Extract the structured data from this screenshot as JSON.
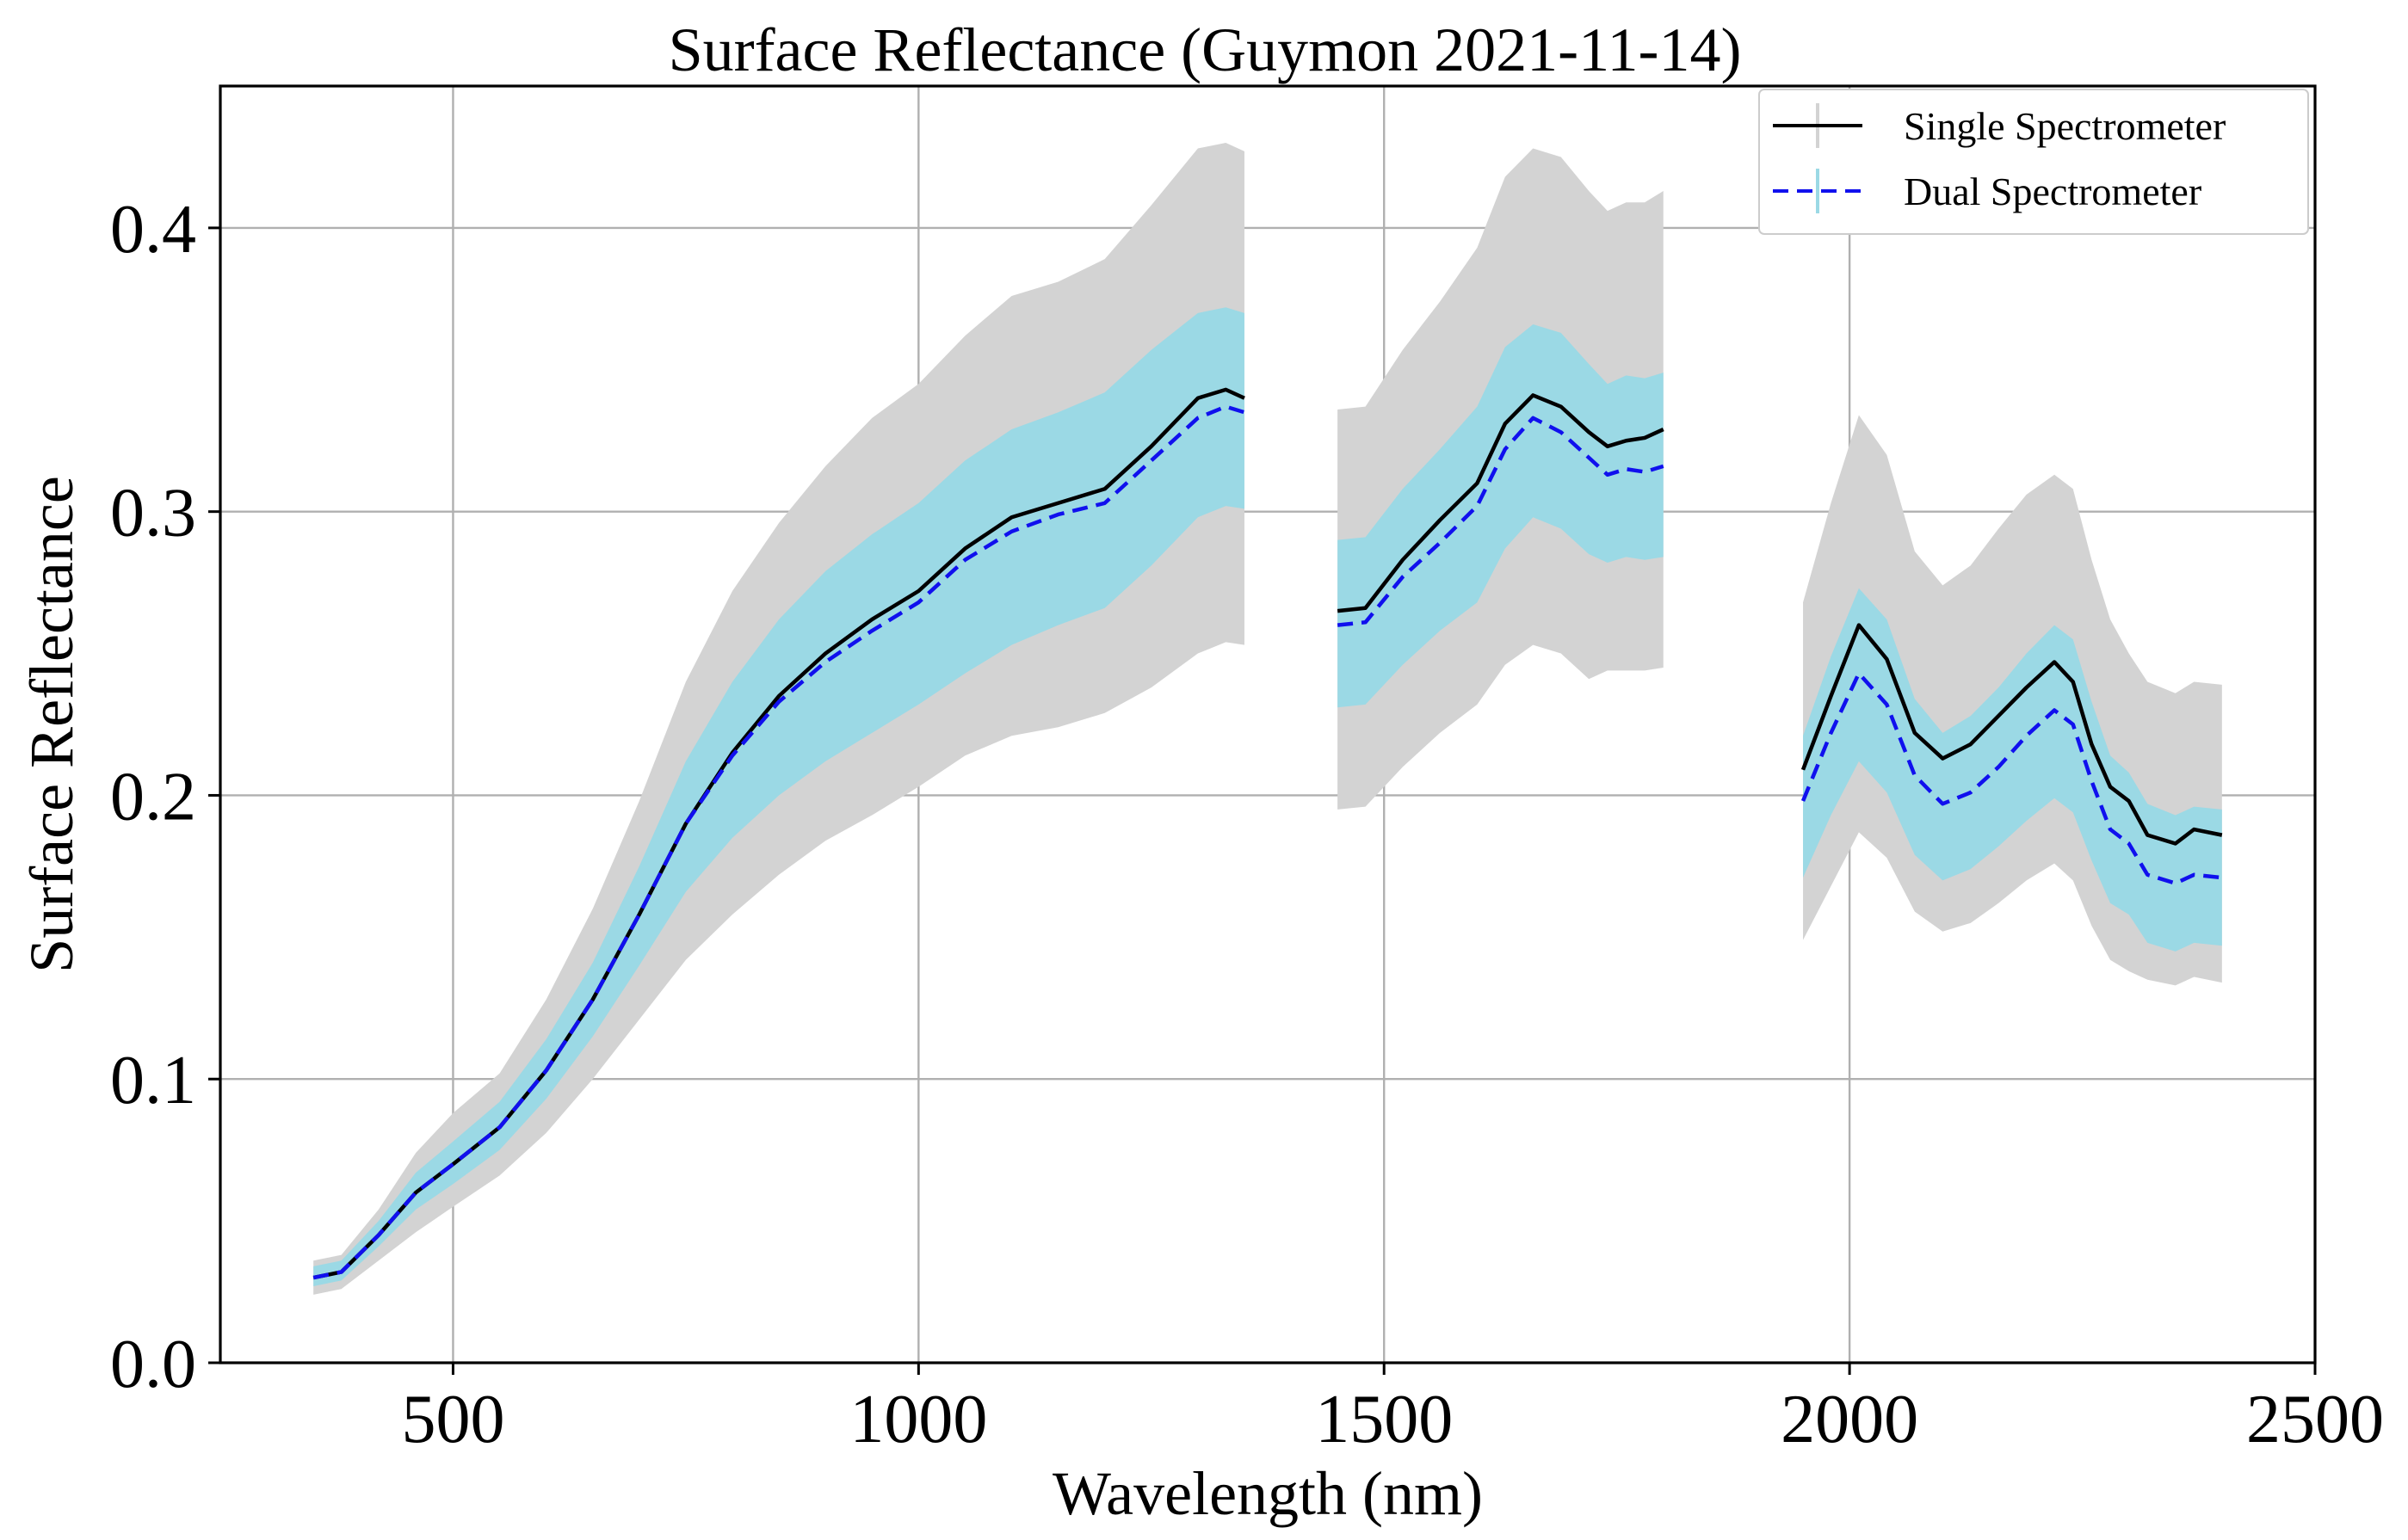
{
  "chart_data": {
    "type": "line",
    "title": "Surface Reflectance (Guymon 2021-11-14)",
    "xlabel": "Wavelength (nm)",
    "ylabel": "Surface Reflectance",
    "xlim": [
      250,
      2500
    ],
    "ylim": [
      0.0,
      0.45
    ],
    "xticks": [
      500,
      1000,
      1500,
      2000,
      2500
    ],
    "xtick_labels": [
      "500",
      "1000",
      "1500",
      "2000",
      "2500"
    ],
    "yticks": [
      0.0,
      0.1,
      0.2,
      0.3,
      0.4
    ],
    "ytick_labels": [
      "0.0",
      "0.1",
      "0.2",
      "0.3",
      "0.4"
    ],
    "grid": true,
    "legend_position": "top-right",
    "colors": {
      "single": "#000000",
      "dual": "#1010ee",
      "single_band": "#d3d3d3",
      "dual_band": "#9bd9e5"
    },
    "segments": [
      {
        "x": [
          350,
          380,
          420,
          460,
          500,
          550,
          600,
          650,
          700,
          750,
          800,
          850,
          900,
          950,
          1000,
          1050,
          1100,
          1150,
          1200,
          1250,
          1300,
          1330,
          1350
        ],
        "single": [
          0.03,
          0.032,
          0.045,
          0.06,
          0.07,
          0.083,
          0.103,
          0.128,
          0.158,
          0.19,
          0.215,
          0.235,
          0.25,
          0.262,
          0.272,
          0.287,
          0.298,
          0.303,
          0.308,
          0.323,
          0.34,
          0.343,
          0.34
        ],
        "single_lo": [
          0.024,
          0.026,
          0.036,
          0.046,
          0.055,
          0.066,
          0.081,
          0.1,
          0.121,
          0.142,
          0.158,
          0.172,
          0.184,
          0.193,
          0.203,
          0.214,
          0.221,
          0.224,
          0.229,
          0.238,
          0.25,
          0.254,
          0.253
        ],
        "single_hi": [
          0.036,
          0.038,
          0.054,
          0.074,
          0.088,
          0.102,
          0.128,
          0.16,
          0.198,
          0.24,
          0.272,
          0.296,
          0.316,
          0.333,
          0.345,
          0.362,
          0.376,
          0.381,
          0.389,
          0.408,
          0.428,
          0.43,
          0.427
        ],
        "dual": [
          0.03,
          0.032,
          0.045,
          0.06,
          0.07,
          0.083,
          0.103,
          0.128,
          0.158,
          0.19,
          0.214,
          0.233,
          0.247,
          0.258,
          0.268,
          0.283,
          0.293,
          0.299,
          0.303,
          0.318,
          0.333,
          0.337,
          0.335
        ],
        "dual_lo": [
          0.027,
          0.029,
          0.041,
          0.054,
          0.063,
          0.075,
          0.093,
          0.115,
          0.14,
          0.166,
          0.185,
          0.2,
          0.212,
          0.222,
          0.232,
          0.243,
          0.253,
          0.26,
          0.266,
          0.281,
          0.298,
          0.302,
          0.301
        ],
        "dual_hi": [
          0.034,
          0.036,
          0.05,
          0.067,
          0.078,
          0.092,
          0.114,
          0.141,
          0.175,
          0.212,
          0.24,
          0.262,
          0.279,
          0.292,
          0.303,
          0.318,
          0.329,
          0.335,
          0.342,
          0.357,
          0.37,
          0.372,
          0.37
        ]
      },
      {
        "x": [
          1450,
          1480,
          1520,
          1560,
          1600,
          1630,
          1660,
          1690,
          1720,
          1740,
          1760,
          1780,
          1800
        ],
        "single": [
          0.265,
          0.266,
          0.283,
          0.297,
          0.31,
          0.331,
          0.341,
          0.337,
          0.328,
          0.323,
          0.325,
          0.326,
          0.329
        ],
        "single_lo": [
          0.195,
          0.196,
          0.21,
          0.222,
          0.232,
          0.246,
          0.253,
          0.25,
          0.241,
          0.244,
          0.244,
          0.244,
          0.245
        ],
        "single_hi": [
          0.336,
          0.337,
          0.357,
          0.374,
          0.393,
          0.418,
          0.428,
          0.425,
          0.413,
          0.406,
          0.409,
          0.409,
          0.413
        ],
        "dual": [
          0.26,
          0.261,
          0.277,
          0.289,
          0.302,
          0.322,
          0.333,
          0.328,
          0.319,
          0.313,
          0.315,
          0.314,
          0.316
        ],
        "dual_lo": [
          0.231,
          0.232,
          0.246,
          0.258,
          0.268,
          0.287,
          0.298,
          0.294,
          0.285,
          0.282,
          0.284,
          0.283,
          0.284
        ],
        "dual_hi": [
          0.29,
          0.291,
          0.308,
          0.322,
          0.337,
          0.358,
          0.366,
          0.363,
          0.352,
          0.345,
          0.348,
          0.347,
          0.349
        ]
      },
      {
        "x": [
          1950,
          1980,
          2010,
          2040,
          2070,
          2100,
          2130,
          2160,
          2190,
          2220,
          2240,
          2260,
          2280,
          2300,
          2320,
          2350,
          2370,
          2400
        ],
        "single": [
          0.209,
          0.235,
          0.26,
          0.248,
          0.222,
          0.213,
          0.218,
          0.228,
          0.238,
          0.247,
          0.24,
          0.218,
          0.203,
          0.198,
          0.186,
          0.183,
          0.188,
          0.186
        ],
        "single_lo": [
          0.149,
          0.168,
          0.187,
          0.178,
          0.159,
          0.152,
          0.155,
          0.162,
          0.17,
          0.176,
          0.17,
          0.154,
          0.142,
          0.138,
          0.135,
          0.133,
          0.136,
          0.134
        ],
        "single_hi": [
          0.268,
          0.303,
          0.334,
          0.32,
          0.286,
          0.274,
          0.281,
          0.294,
          0.306,
          0.313,
          0.308,
          0.283,
          0.262,
          0.25,
          0.24,
          0.236,
          0.24,
          0.239
        ],
        "dual": [
          0.198,
          0.222,
          0.243,
          0.232,
          0.207,
          0.197,
          0.201,
          0.21,
          0.221,
          0.23,
          0.225,
          0.205,
          0.188,
          0.183,
          0.172,
          0.169,
          0.172,
          0.171
        ],
        "dual_lo": [
          0.171,
          0.193,
          0.212,
          0.201,
          0.179,
          0.17,
          0.174,
          0.182,
          0.191,
          0.199,
          0.194,
          0.177,
          0.162,
          0.158,
          0.148,
          0.145,
          0.148,
          0.147
        ],
        "dual_hi": [
          0.221,
          0.249,
          0.273,
          0.262,
          0.234,
          0.222,
          0.228,
          0.238,
          0.25,
          0.26,
          0.255,
          0.233,
          0.214,
          0.208,
          0.197,
          0.193,
          0.196,
          0.195
        ]
      }
    ],
    "legend": [
      {
        "label": "Single Spectrometer",
        "style": "solid"
      },
      {
        "label": "Dual Spectrometer",
        "style": "dashed"
      }
    ]
  }
}
